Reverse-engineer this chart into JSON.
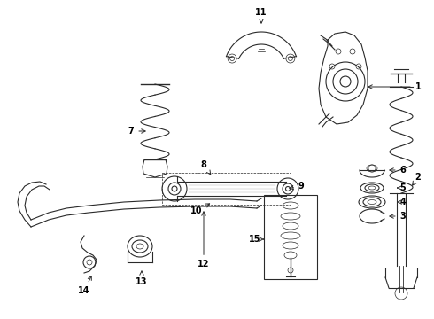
{
  "bg_color": "#ffffff",
  "line_color": "#2a2a2a",
  "text_color": "#000000",
  "fig_width": 4.9,
  "fig_height": 3.6,
  "dpi": 100,
  "xlim": [
    0,
    490
  ],
  "ylim": [
    0,
    360
  ]
}
